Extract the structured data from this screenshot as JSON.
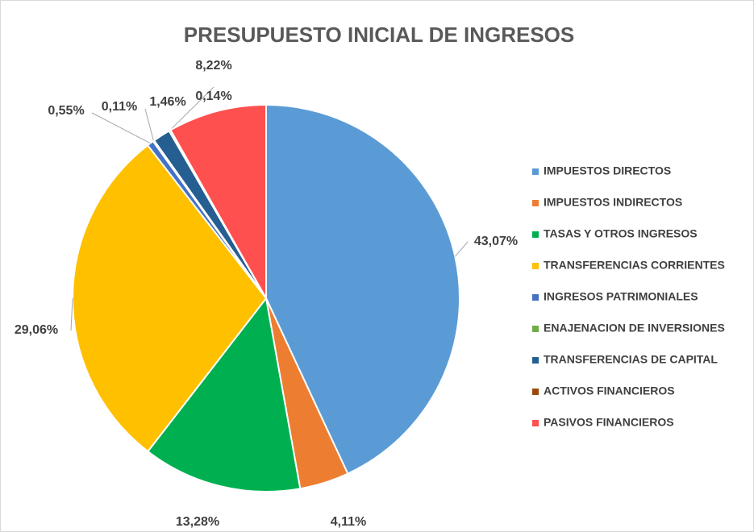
{
  "chart_data": {
    "type": "pie",
    "title": "PRESUPUESTO INICIAL DE INGRESOS",
    "categories": [
      "IMPUESTOS DIRECTOS",
      "IMPUESTOS INDIRECTOS",
      "TASAS Y OTROS INGRESOS",
      "TRANSFERENCIAS CORRIENTES",
      "INGRESOS PATRIMONIALES",
      "ENAJENACION DE INVERSIONES",
      "TRANSFERENCIAS DE CAPITAL",
      "ACTIVOS FINANCIEROS",
      "PASIVOS FINANCIEROS"
    ],
    "values": [
      43.07,
      4.11,
      13.28,
      29.06,
      0.55,
      0.11,
      1.46,
      0.14,
      8.22
    ],
    "value_labels": [
      "43,07%",
      "4,11%",
      "13,28%",
      "29,06%",
      "0,55%",
      "0,11%",
      "1,46%",
      "0,14%",
      "8,22%"
    ],
    "colors": [
      "#5b9bd5",
      "#ed7d31",
      "#00b050",
      "#ffc000",
      "#4472c4",
      "#70ad47",
      "#255e91",
      "#9e480e",
      "#ff5050"
    ],
    "legend": "right"
  }
}
